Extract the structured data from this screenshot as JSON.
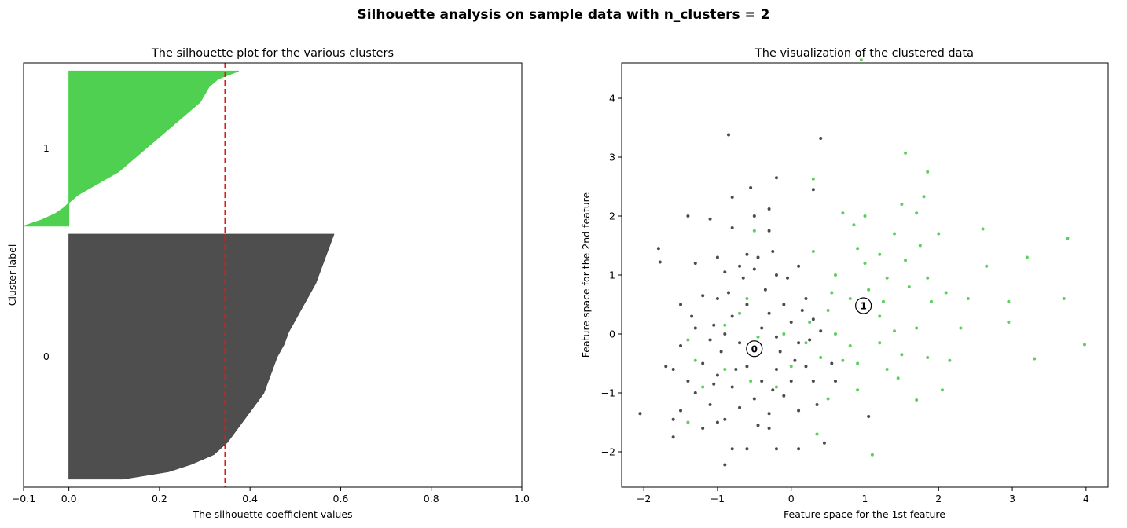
{
  "figure": {
    "title": "Silhouette analysis on sample data with n_clusters = 2"
  },
  "chart_data": [
    {
      "type": "area",
      "title": "The silhouette plot for the various clusters",
      "xlabel": "The silhouette coefficient values",
      "ylabel": "Cluster label",
      "xlim": [
        -0.1,
        1.0
      ],
      "xticks": [
        -0.1,
        0,
        0.2,
        0.4,
        0.6,
        0.8,
        1.0
      ],
      "xtick_labels": [
        "−0.1",
        "0.0",
        "0.2",
        "0.4",
        "0.6",
        "0.8",
        "1.0"
      ],
      "ylim": [
        0,
        520
      ],
      "yticks": [],
      "grid": false,
      "average_silhouette": 0.345,
      "clusters": [
        {
          "label": "0",
          "color": "#4a4a4a",
          "y_start": 10,
          "y_end": 310,
          "profile": [
            [
              0,
              0.12
            ],
            [
              0.03,
              0.22
            ],
            [
              0.06,
              0.27
            ],
            [
              0.1,
              0.32
            ],
            [
              0.15,
              0.35
            ],
            [
              0.2,
              0.37
            ],
            [
              0.25,
              0.39
            ],
            [
              0.3,
              0.41
            ],
            [
              0.35,
              0.43
            ],
            [
              0.4,
              0.44
            ],
            [
              0.45,
              0.45
            ],
            [
              0.5,
              0.46
            ],
            [
              0.55,
              0.475
            ],
            [
              0.6,
              0.485
            ],
            [
              0.65,
              0.5
            ],
            [
              0.7,
              0.515
            ],
            [
              0.75,
              0.53
            ],
            [
              0.8,
              0.545
            ],
            [
              0.85,
              0.555
            ],
            [
              0.9,
              0.565
            ],
            [
              0.95,
              0.575
            ],
            [
              1.0,
              0.585
            ]
          ]
        },
        {
          "label": "1",
          "color": "#4ccf4c",
          "y_start": 320,
          "y_end": 510,
          "profile": [
            [
              0,
              -0.1
            ],
            [
              0.04,
              -0.06
            ],
            [
              0.08,
              -0.03
            ],
            [
              0.12,
              -0.01
            ],
            [
              0.15,
              0.0
            ],
            [
              0.2,
              0.02
            ],
            [
              0.25,
              0.05
            ],
            [
              0.3,
              0.08
            ],
            [
              0.35,
              0.11
            ],
            [
              0.4,
              0.13
            ],
            [
              0.45,
              0.15
            ],
            [
              0.5,
              0.17
            ],
            [
              0.55,
              0.19
            ],
            [
              0.6,
              0.21
            ],
            [
              0.65,
              0.23
            ],
            [
              0.7,
              0.25
            ],
            [
              0.75,
              0.27
            ],
            [
              0.8,
              0.29
            ],
            [
              0.85,
              0.3
            ],
            [
              0.9,
              0.31
            ],
            [
              0.95,
              0.33
            ],
            [
              1.0,
              0.375
            ]
          ]
        }
      ]
    },
    {
      "type": "scatter",
      "title": "The visualization of the clustered data",
      "xlabel": "Feature space for the 1st feature",
      "ylabel": "Feature space for the 2nd feature",
      "xlim": [
        -2.3,
        4.3
      ],
      "ylim": [
        -2.6,
        4.6
      ],
      "xticks": [
        -2,
        -1,
        0,
        1,
        2,
        3,
        4
      ],
      "xtick_labels": [
        "−2",
        "−1",
        "0",
        "1",
        "2",
        "3",
        "4"
      ],
      "yticks": [
        -2,
        -1,
        0,
        1,
        2,
        3,
        4
      ],
      "ytick_labels": [
        "−2",
        "−1",
        "0",
        "1",
        "2",
        "3",
        "4"
      ],
      "grid": false,
      "centers": [
        {
          "label": "0",
          "x": -0.5,
          "y": -0.25
        },
        {
          "label": "1",
          "x": 0.98,
          "y": 0.48
        }
      ],
      "series": [
        {
          "name": "0",
          "color": "#2b2b2b",
          "points": [
            [
              -1.8,
              1.45
            ],
            [
              -1.78,
              1.22
            ],
            [
              -1.4,
              2.0
            ],
            [
              -1.1,
              1.95
            ],
            [
              -0.85,
              3.38
            ],
            [
              -0.8,
              2.32
            ],
            [
              -0.8,
              1.8
            ],
            [
              -0.55,
              2.48
            ],
            [
              -0.5,
              2.0
            ],
            [
              -0.3,
              2.12
            ],
            [
              -0.2,
              2.65
            ],
            [
              0.3,
              2.45
            ],
            [
              0.4,
              3.32
            ],
            [
              -0.3,
              1.75
            ],
            [
              -0.25,
              1.4
            ],
            [
              -0.6,
              1.35
            ],
            [
              -1.0,
              1.3
            ],
            [
              -1.3,
              1.2
            ],
            [
              -0.9,
              1.05
            ],
            [
              -0.7,
              1.15
            ],
            [
              -0.5,
              1.1
            ],
            [
              -0.2,
              1.0
            ],
            [
              0.1,
              1.15
            ],
            [
              -1.2,
              0.65
            ],
            [
              -1.5,
              0.5
            ],
            [
              -1.0,
              0.6
            ],
            [
              -0.8,
              0.3
            ],
            [
              -0.6,
              0.5
            ],
            [
              -0.35,
              0.75
            ],
            [
              -0.1,
              0.5
            ],
            [
              0.2,
              0.6
            ],
            [
              0.3,
              0.25
            ],
            [
              -1.3,
              0.1
            ],
            [
              -1.1,
              -0.1
            ],
            [
              -0.9,
              0.0
            ],
            [
              -0.7,
              -0.15
            ],
            [
              -0.4,
              0.1
            ],
            [
              -0.2,
              -0.05
            ],
            [
              0.0,
              0.2
            ],
            [
              0.25,
              -0.1
            ],
            [
              -1.6,
              -0.6
            ],
            [
              -1.4,
              -0.8
            ],
            [
              -1.2,
              -0.5
            ],
            [
              -1.0,
              -0.7
            ],
            [
              -0.8,
              -0.9
            ],
            [
              -0.6,
              -0.55
            ],
            [
              -0.4,
              -0.8
            ],
            [
              -0.2,
              -0.6
            ],
            [
              0.05,
              -0.45
            ],
            [
              0.3,
              -0.8
            ],
            [
              -1.5,
              -1.3
            ],
            [
              -1.3,
              -1.0
            ],
            [
              -1.1,
              -1.2
            ],
            [
              -0.9,
              -1.45
            ],
            [
              -0.7,
              -1.25
            ],
            [
              -0.5,
              -1.1
            ],
            [
              -0.3,
              -1.35
            ],
            [
              -0.1,
              -1.05
            ],
            [
              0.1,
              -1.3
            ],
            [
              0.35,
              -1.2
            ],
            [
              -1.2,
              -1.6
            ],
            [
              -1.0,
              -1.5
            ],
            [
              -0.8,
              -1.95
            ],
            [
              -0.6,
              -1.95
            ],
            [
              -0.9,
              -2.22
            ],
            [
              -0.3,
              -1.6
            ],
            [
              -0.2,
              -1.95
            ],
            [
              0.1,
              -1.95
            ],
            [
              0.45,
              -1.85
            ],
            [
              1.05,
              -1.4
            ],
            [
              -2.05,
              -1.35
            ],
            [
              -1.6,
              -1.75
            ],
            [
              -1.6,
              -1.45
            ],
            [
              0.6,
              -0.8
            ],
            [
              0.55,
              -0.5
            ],
            [
              0.4,
              0.05
            ],
            [
              0.15,
              0.4
            ],
            [
              -0.05,
              0.95
            ],
            [
              -0.45,
              1.3
            ],
            [
              -0.65,
              0.95
            ],
            [
              -1.35,
              0.3
            ],
            [
              -1.5,
              -0.2
            ],
            [
              -1.7,
              -0.55
            ],
            [
              -0.95,
              -0.3
            ],
            [
              -0.75,
              -0.6
            ],
            [
              -0.55,
              -0.3
            ],
            [
              -0.15,
              -0.3
            ],
            [
              0.1,
              -0.15
            ],
            [
              0.2,
              -0.55
            ],
            [
              -0.3,
              0.35
            ],
            [
              -0.85,
              0.7
            ],
            [
              -1.05,
              0.15
            ],
            [
              -0.45,
              -1.55
            ],
            [
              -1.05,
              -0.85
            ],
            [
              0.0,
              -0.8
            ],
            [
              -0.25,
              -0.95
            ]
          ]
        },
        {
          "name": "1",
          "color": "#3fc83f",
          "points": [
            [
              0.95,
              4.65
            ],
            [
              1.55,
              3.07
            ],
            [
              1.85,
              2.75
            ],
            [
              1.8,
              2.33
            ],
            [
              1.5,
              2.2
            ],
            [
              1.7,
              2.05
            ],
            [
              2.6,
              1.78
            ],
            [
              3.75,
              1.62
            ],
            [
              1.0,
              2.0
            ],
            [
              0.7,
              2.05
            ],
            [
              0.3,
              2.63
            ],
            [
              0.85,
              1.85
            ],
            [
              1.4,
              1.7
            ],
            [
              1.2,
              1.35
            ],
            [
              1.75,
              1.5
            ],
            [
              2.0,
              1.7
            ],
            [
              2.65,
              1.15
            ],
            [
              3.2,
              1.3
            ],
            [
              1.0,
              1.2
            ],
            [
              0.6,
              1.0
            ],
            [
              1.3,
              0.95
            ],
            [
              1.6,
              0.8
            ],
            [
              1.9,
              0.55
            ],
            [
              2.1,
              0.7
            ],
            [
              2.4,
              0.6
            ],
            [
              2.95,
              0.55
            ],
            [
              3.7,
              0.6
            ],
            [
              0.8,
              0.6
            ],
            [
              0.5,
              0.4
            ],
            [
              1.2,
              0.3
            ],
            [
              1.4,
              0.05
            ],
            [
              1.7,
              0.1
            ],
            [
              2.3,
              0.1
            ],
            [
              2.95,
              0.2
            ],
            [
              0.6,
              0.0
            ],
            [
              0.8,
              -0.2
            ],
            [
              1.2,
              -0.15
            ],
            [
              1.5,
              -0.35
            ],
            [
              1.85,
              -0.4
            ],
            [
              2.15,
              -0.45
            ],
            [
              3.3,
              -0.42
            ],
            [
              3.98,
              -0.18
            ],
            [
              0.2,
              -0.15
            ],
            [
              0.4,
              -0.4
            ],
            [
              0.9,
              -0.5
            ],
            [
              1.3,
              -0.6
            ],
            [
              1.45,
              -0.75
            ],
            [
              1.7,
              -1.12
            ],
            [
              2.05,
              -0.95
            ],
            [
              0.9,
              -0.95
            ],
            [
              1.1,
              -2.05
            ],
            [
              0.5,
              -1.1
            ],
            [
              -0.2,
              -0.9
            ],
            [
              -0.55,
              -0.8
            ],
            [
              -0.9,
              -0.6
            ],
            [
              -1.2,
              -0.9
            ],
            [
              -1.4,
              -1.5
            ],
            [
              -1.3,
              -0.45
            ],
            [
              -1.4,
              -0.1
            ],
            [
              -0.9,
              0.15
            ],
            [
              -0.6,
              0.6
            ],
            [
              -0.5,
              1.75
            ],
            [
              0.3,
              1.4
            ],
            [
              -0.1,
              0.0
            ],
            [
              0.25,
              0.2
            ],
            [
              0.55,
              0.7
            ],
            [
              1.05,
              0.75
            ],
            [
              1.55,
              1.25
            ],
            [
              1.85,
              0.95
            ],
            [
              0.7,
              -0.45
            ],
            [
              0.0,
              -0.55
            ],
            [
              0.35,
              -1.7
            ],
            [
              -0.45,
              -0.05
            ],
            [
              -0.7,
              0.35
            ],
            [
              0.9,
              1.45
            ],
            [
              1.25,
              0.55
            ]
          ]
        }
      ]
    }
  ]
}
